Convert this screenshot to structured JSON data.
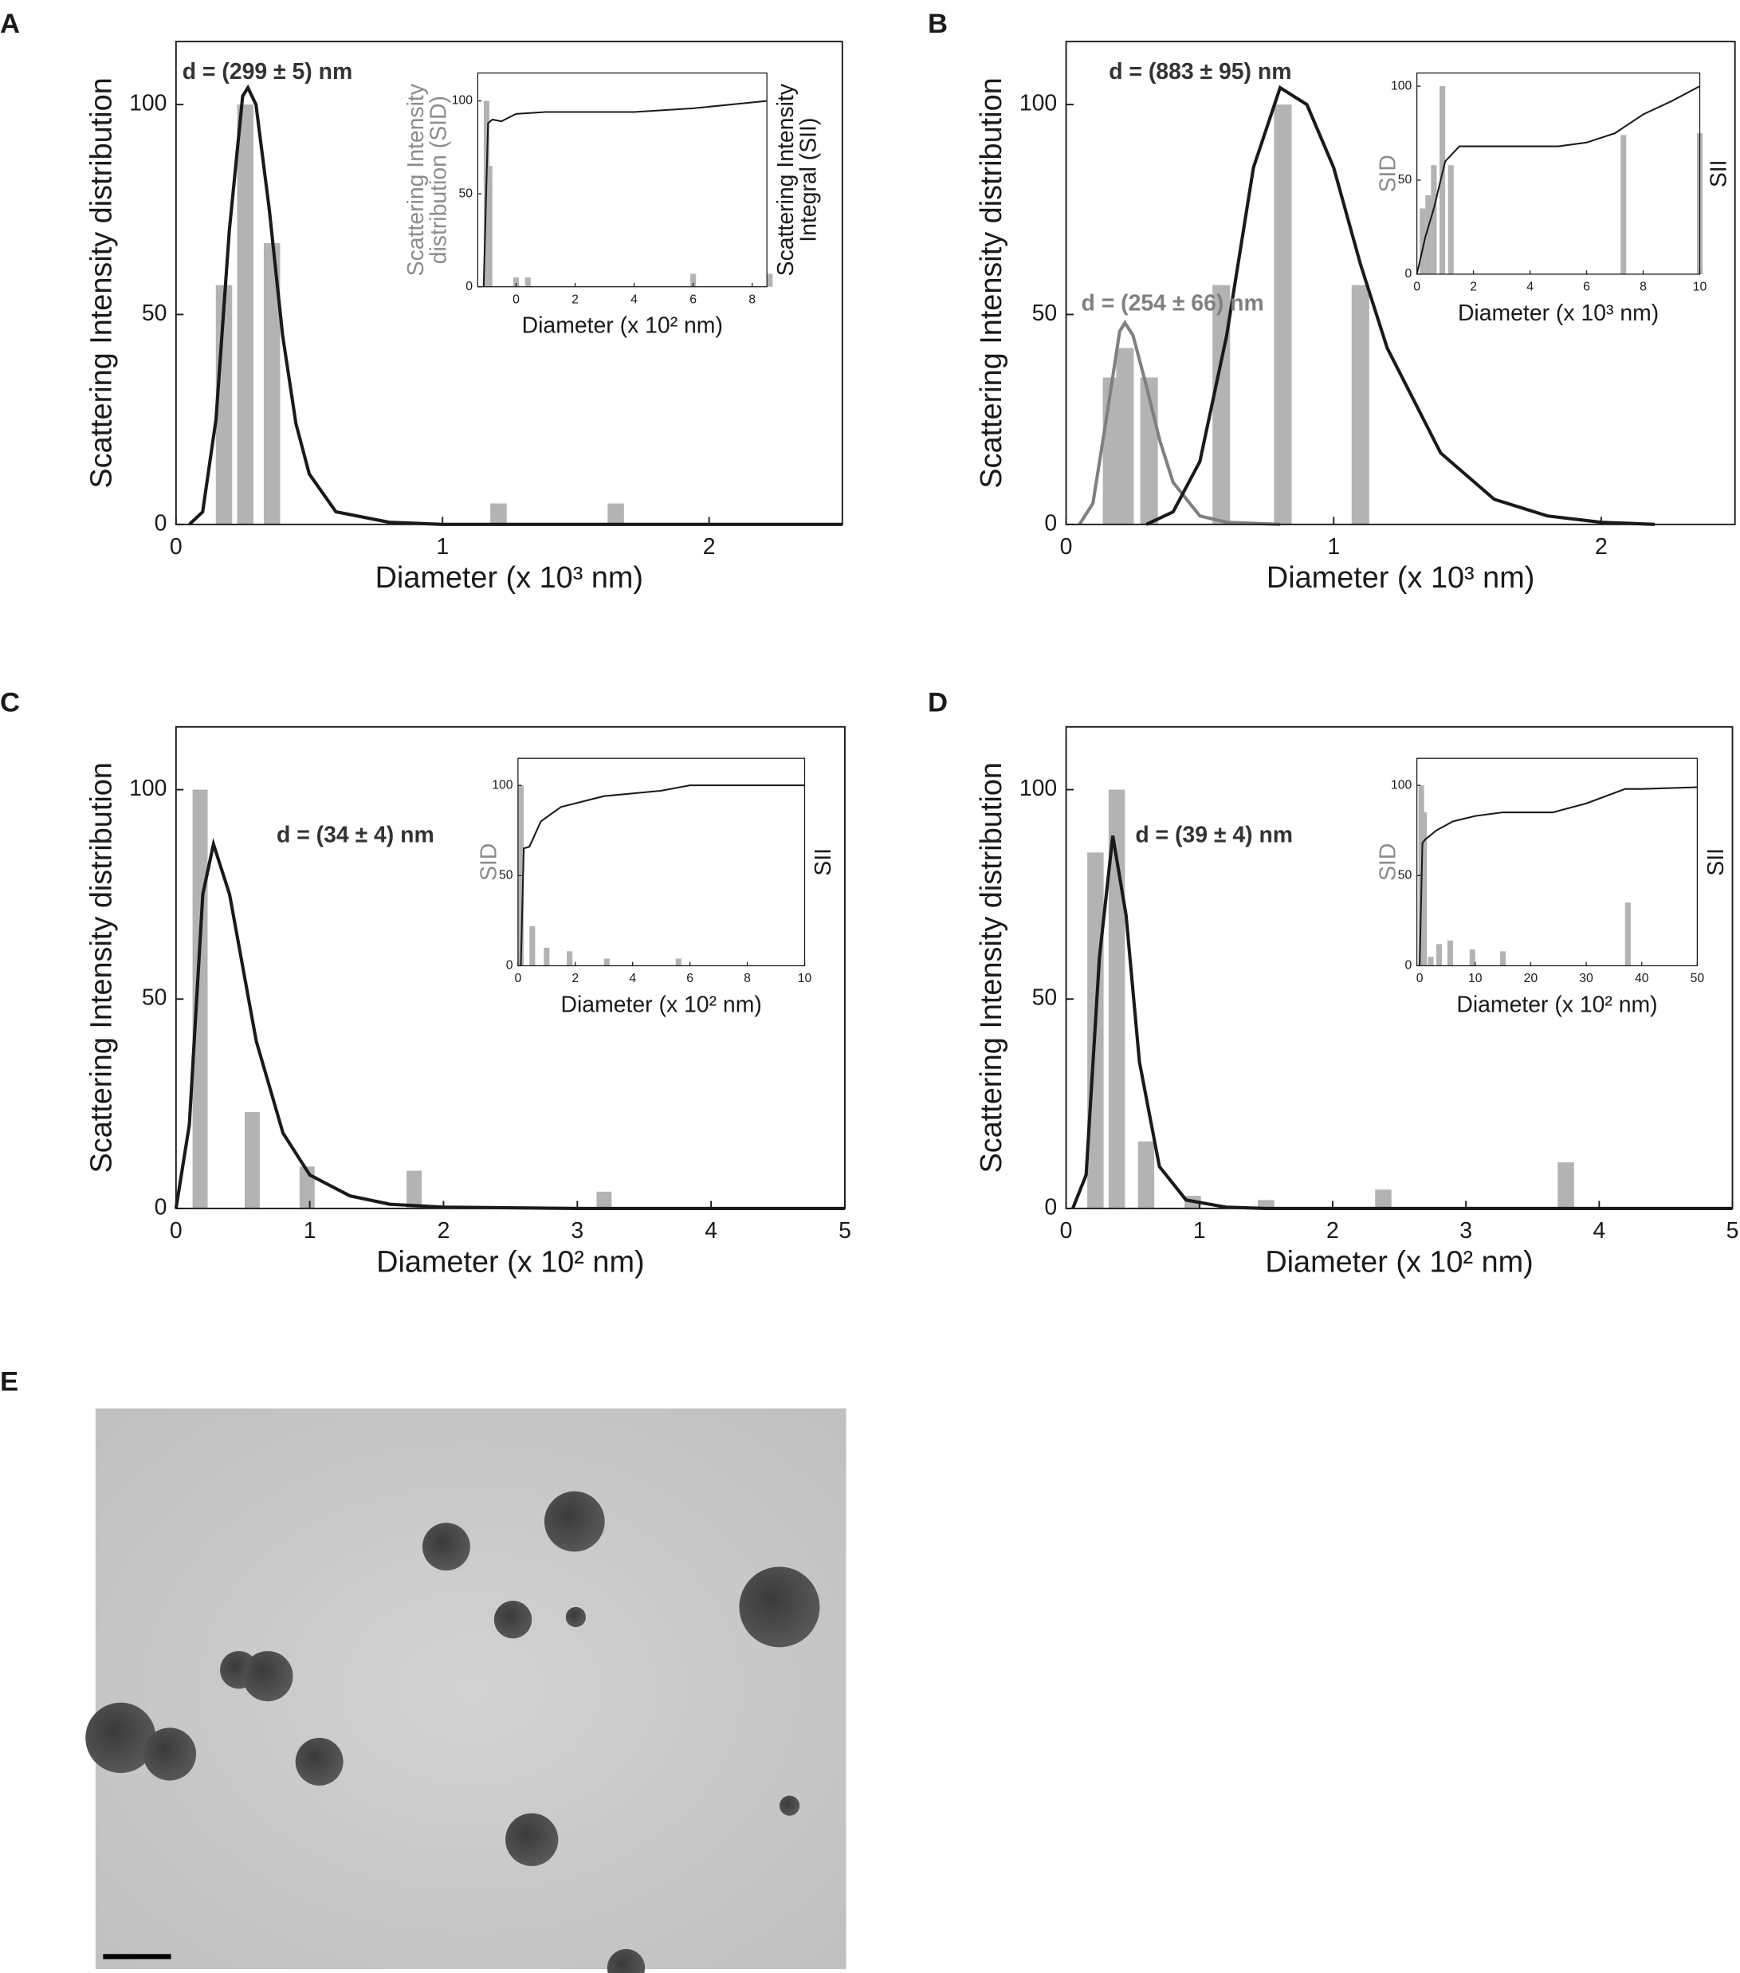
{
  "chart_data": [
    {
      "type": "bar",
      "panel": "A",
      "annotations": [
        {
          "text": "d = (299 ± 5) nm",
          "color": "#333333"
        }
      ],
      "y_label": [
        "Scattering Intensity distribution"
      ],
      "x_label": "Diameter (x 10³  nm)",
      "x": [
        0.18,
        0.26,
        0.36,
        1.21,
        1.65
      ],
      "values": [
        57,
        100,
        67,
        5,
        5
      ],
      "color": "#b3b3b3",
      "fits": [
        {
          "color": "#1a1a1a",
          "x": [
            0.05,
            0.1,
            0.15,
            0.2,
            0.25,
            0.27,
            0.3,
            0.35,
            0.4,
            0.45,
            0.5,
            0.6,
            0.8,
            1.0,
            1.5,
            2.5
          ],
          "y": [
            0,
            3,
            25,
            70,
            102,
            104,
            100,
            75,
            45,
            24,
            12,
            3,
            0.5,
            0,
            0,
            0
          ]
        }
      ],
      "xlim": [
        0,
        2.5
      ],
      "ylim": [
        0,
        115
      ],
      "xticks": [
        0,
        1,
        2
      ],
      "yticks": [
        0,
        50,
        100
      ],
      "inset": {
        "y_label": [
          "Scattering Intensity",
          "distribution (SID)"
        ],
        "y2_label": [
          "Scattering Intensity",
          "Integral (SII)"
        ],
        "x_label": "Diameter (x 10² nm)",
        "x": [
          -1.0,
          -0.9,
          0,
          0.4,
          6,
          8.6
        ],
        "values": [
          100,
          65,
          5,
          5,
          7,
          7
        ],
        "color": "#b3b3b3",
        "line": {
          "color": "#1a1a1a",
          "x": [
            -1.1,
            -0.95,
            -0.8,
            -0.5,
            0,
            1,
            3,
            4,
            6,
            8.5
          ],
          "y": [
            0,
            88,
            90,
            89,
            93,
            94,
            94,
            94,
            96,
            100
          ]
        },
        "xlim": [
          -1.3,
          8.5
        ],
        "ylim": [
          0,
          115
        ],
        "xticks": [
          0,
          2,
          4,
          6,
          8
        ],
        "yticks": [
          0,
          50,
          100
        ]
      }
    },
    {
      "type": "bar",
      "panel": "B",
      "annotations": [
        {
          "text": "d = (883 ± 95) nm",
          "color": "#333333"
        },
        {
          "text": "d = (254 ± 66) nm",
          "color": "#808080"
        }
      ],
      "y_label": [
        "Scattering Intensity distribution"
      ],
      "x_label": "Diameter (x 10³  nm)",
      "x": [
        0.17,
        0.22,
        0.31,
        0.58,
        0.81,
        1.1
      ],
      "values": [
        35,
        42,
        35,
        57,
        100,
        57
      ],
      "color": "#b3b3b3",
      "fits": [
        {
          "color": "#808080",
          "x": [
            0.05,
            0.1,
            0.15,
            0.2,
            0.22,
            0.25,
            0.3,
            0.35,
            0.4,
            0.5,
            0.6,
            0.8
          ],
          "y": [
            0,
            5,
            25,
            46,
            48,
            45,
            33,
            20,
            10,
            2,
            0.5,
            0
          ]
        },
        {
          "color": "#1a1a1a",
          "x": [
            0.3,
            0.4,
            0.5,
            0.6,
            0.7,
            0.8,
            0.9,
            1.0,
            1.1,
            1.2,
            1.4,
            1.6,
            1.8,
            2.0,
            2.2
          ],
          "y": [
            0,
            3,
            15,
            45,
            85,
            104,
            100,
            85,
            62,
            42,
            17,
            6,
            2,
            0.5,
            0
          ]
        }
      ],
      "xlim": [
        0,
        2.5
      ],
      "ylim": [
        0,
        115
      ],
      "xticks": [
        0,
        1,
        2
      ],
      "yticks": [
        0,
        50,
        100
      ],
      "inset": {
        "y_label": [
          "SID"
        ],
        "y2_label": [
          "SII"
        ],
        "x_label": "Diameter (x 10³ nm)",
        "x": [
          0.2,
          0.4,
          0.6,
          0.9,
          1.2,
          7.3,
          10
        ],
        "values": [
          35,
          42,
          58,
          100,
          58,
          74,
          75
        ],
        "color": "#b3b3b3",
        "line": {
          "color": "#1a1a1a",
          "x": [
            0,
            0.3,
            0.6,
            1,
            1.5,
            3,
            5,
            6,
            7,
            8,
            9,
            10
          ],
          "y": [
            0,
            20,
            35,
            60,
            68,
            68,
            68,
            70,
            75,
            85,
            92,
            100
          ]
        },
        "xlim": [
          0,
          10
        ],
        "ylim": [
          0,
          107
        ],
        "xticks": [
          0,
          2,
          4,
          6,
          8,
          10
        ],
        "yticks": [
          0,
          50,
          100
        ]
      }
    },
    {
      "type": "bar",
      "panel": "C",
      "annotations": [
        {
          "text": "d = (34 ± 4) nm",
          "color": "#333333"
        }
      ],
      "y_label": [
        "Scattering Intensity distribution"
      ],
      "x_label": "Diameter (x 10² nm)",
      "x": [
        0.18,
        0.57,
        0.98,
        1.78,
        3.2
      ],
      "values": [
        100,
        23,
        10,
        9,
        4
      ],
      "color": "#b3b3b3",
      "fits": [
        {
          "color": "#1a1a1a",
          "x": [
            0,
            0.1,
            0.2,
            0.28,
            0.4,
            0.6,
            0.8,
            1.0,
            1.3,
            1.6,
            2,
            3,
            5
          ],
          "y": [
            0,
            20,
            75,
            87,
            75,
            40,
            18,
            8,
            3,
            1,
            0.3,
            0,
            0
          ]
        }
      ],
      "xlim": [
        0,
        5
      ],
      "ylim": [
        0,
        115
      ],
      "xticks": [
        0,
        1,
        2,
        3,
        4,
        5
      ],
      "yticks": [
        0,
        50,
        100
      ],
      "inset": {
        "y_label": [
          "SID"
        ],
        "y2_label": [
          "SII"
        ],
        "x_label": "Diameter (x 10² nm)",
        "x": [
          0.1,
          0.5,
          1.0,
          1.8,
          3.1,
          5.6
        ],
        "values": [
          100,
          22,
          10,
          8,
          4,
          4
        ],
        "color": "#b3b3b3",
        "line": {
          "color": "#1a1a1a",
          "x": [
            0.1,
            0.2,
            0.4,
            0.8,
            1.5,
            3,
            5,
            6,
            10
          ],
          "y": [
            0,
            65,
            66,
            80,
            88,
            94,
            97,
            100,
            100
          ]
        },
        "xlim": [
          0,
          10
        ],
        "ylim": [
          0,
          115
        ],
        "xticks": [
          0,
          2,
          4,
          6,
          8,
          10
        ],
        "yticks": [
          0,
          50,
          100
        ]
      }
    },
    {
      "type": "bar",
      "panel": "D",
      "annotations": [
        {
          "text": "d = (39 ± 4) nm",
          "color": "#333333"
        }
      ],
      "y_label": [
        "Scattering Intensity distribution"
      ],
      "x_label": "Diameter (x 10² nm)",
      "x": [
        0.22,
        0.38,
        0.6,
        0.95,
        1.5,
        2.38,
        3.75
      ],
      "values": [
        85,
        100,
        16,
        3,
        2,
        4.5,
        11
      ],
      "color": "#b3b3b3",
      "fits": [
        {
          "color": "#1a1a1a",
          "x": [
            0.05,
            0.15,
            0.25,
            0.35,
            0.45,
            0.55,
            0.7,
            0.9,
            1.2,
            1.5,
            2,
            5
          ],
          "y": [
            0,
            8,
            60,
            89,
            70,
            35,
            10,
            2,
            0.3,
            0,
            0,
            0
          ]
        }
      ],
      "xlim": [
        0,
        5
      ],
      "ylim": [
        0,
        115
      ],
      "xticks": [
        0,
        1,
        2,
        3,
        4,
        5
      ],
      "yticks": [
        0,
        50,
        100
      ],
      "inset": {
        "y_label": [
          "SID"
        ],
        "y2_label": [
          "SII"
        ],
        "x_label": "Diameter (x 10² nm)",
        "x": [
          0.3,
          0.8,
          2,
          3.5,
          5.5,
          9.5,
          15,
          37.5
        ],
        "values": [
          100,
          85,
          5,
          12,
          14,
          9,
          8,
          35
        ],
        "color": "#b3b3b3",
        "line": {
          "color": "#1a1a1a",
          "x": [
            0,
            0.5,
            1,
            3,
            6,
            10,
            15,
            24,
            30,
            37,
            40,
            50
          ],
          "y": [
            0,
            68,
            70,
            75,
            80,
            83,
            85,
            85,
            90,
            98,
            98,
            99
          ]
        },
        "xlim": [
          -0.5,
          50
        ],
        "ylim": [
          0,
          115
        ],
        "xticks": [
          0,
          10,
          20,
          30,
          40,
          50
        ],
        "yticks": [
          0,
          50,
          100
        ]
      }
    }
  ],
  "panel_e": {
    "label": "E"
  }
}
